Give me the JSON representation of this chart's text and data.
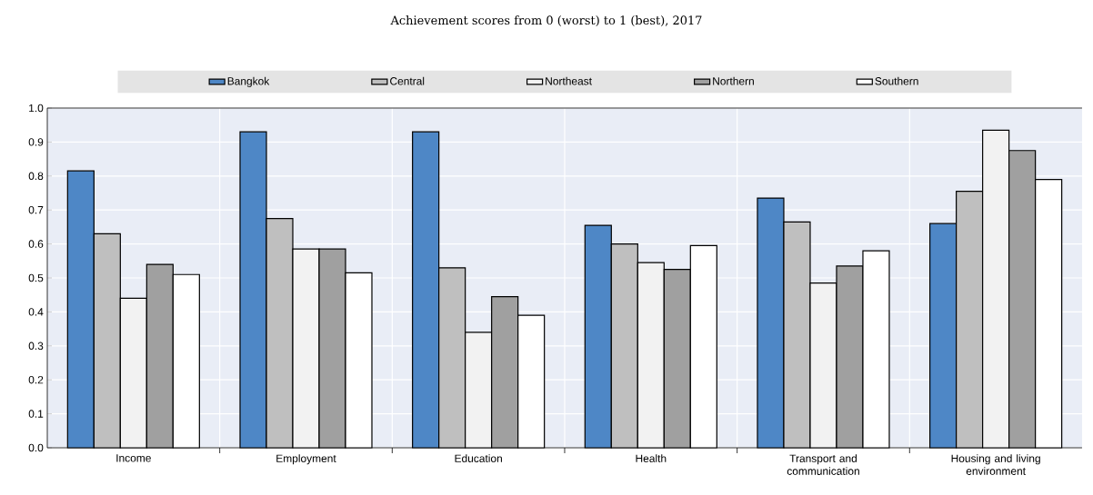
{
  "chart_data": {
    "type": "bar",
    "subtitle": "Achievement scores from 0 (worst) to 1 (best), 2017",
    "categories": [
      "Income",
      "Employment",
      "Education",
      "Health",
      "Transport and communication",
      "Housing and living environment"
    ],
    "series": [
      {
        "name": "Bangkok",
        "color": "#4e87c6",
        "values": [
          0.815,
          0.93,
          0.93,
          0.655,
          0.735,
          0.66
        ]
      },
      {
        "name": "Central",
        "color": "#bfbfbf",
        "values": [
          0.63,
          0.675,
          0.53,
          0.6,
          0.665,
          0.755
        ]
      },
      {
        "name": "Northeast",
        "color": "#f2f2f2",
        "values": [
          0.44,
          0.585,
          0.34,
          0.545,
          0.485,
          0.935
        ]
      },
      {
        "name": "Northern",
        "color": "#a0a0a0",
        "values": [
          0.54,
          0.585,
          0.445,
          0.525,
          0.535,
          0.875
        ]
      },
      {
        "name": "Southern",
        "color": "#ffffff",
        "values": [
          0.51,
          0.515,
          0.39,
          0.595,
          0.58,
          0.79
        ]
      }
    ],
    "ylim": [
      0,
      1
    ],
    "yticks": [
      {
        "value": 0,
        "label": "0.0"
      },
      0.1,
      0.2,
      0.3,
      0.4,
      0.5,
      0.6,
      0.7,
      0.8,
      0.9,
      {
        "value": 1,
        "label": "1.0"
      }
    ],
    "grid": "y",
    "legend": "top"
  }
}
